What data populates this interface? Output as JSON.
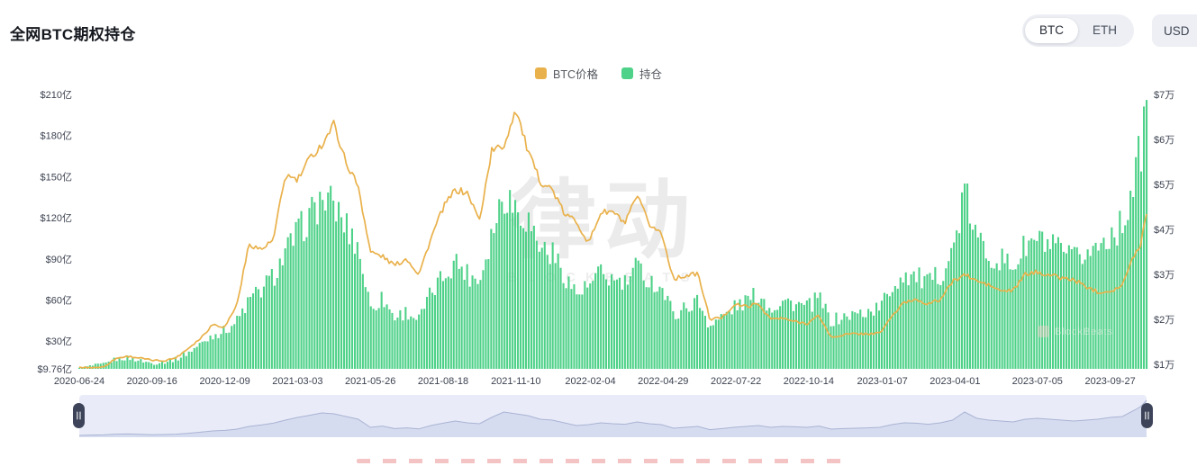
{
  "title": "全网BTC期权持仓",
  "controls": {
    "asset_toggle": {
      "options": [
        "BTC",
        "ETH"
      ],
      "selected": "BTC"
    },
    "currency_select": {
      "value": "USD"
    }
  },
  "legend": [
    {
      "label": "BTC价格",
      "color": "#e9b14b"
    },
    {
      "label": "持仓",
      "color": "#4ed188"
    }
  ],
  "watermark": {
    "logo_text": "律动",
    "sub_text": "BLOCKBEATS",
    "corner_text": "BlockBeats"
  },
  "chart_data": {
    "type": "combo",
    "x": [
      "2020-06-24",
      "2020-07-08",
      "2020-07-22",
      "2020-08-05",
      "2020-08-19",
      "2020-09-02",
      "2020-09-16",
      "2020-09-30",
      "2020-10-14",
      "2020-10-28",
      "2020-11-11",
      "2020-11-25",
      "2020-12-09",
      "2020-12-23",
      "2021-01-06",
      "2021-01-20",
      "2021-02-03",
      "2021-02-17",
      "2021-03-03",
      "2021-03-17",
      "2021-03-31",
      "2021-04-14",
      "2021-04-28",
      "2021-05-12",
      "2021-05-26",
      "2021-06-09",
      "2021-06-23",
      "2021-07-07",
      "2021-07-21",
      "2021-08-04",
      "2021-08-18",
      "2021-09-01",
      "2021-09-15",
      "2021-09-29",
      "2021-10-13",
      "2021-10-27",
      "2021-11-10",
      "2021-11-24",
      "2021-12-08",
      "2021-12-22",
      "2022-01-05",
      "2022-01-19",
      "2022-02-02",
      "2022-02-16",
      "2022-03-02",
      "2022-03-16",
      "2022-03-30",
      "2022-04-13",
      "2022-04-27",
      "2022-05-11",
      "2022-05-25",
      "2022-06-08",
      "2022-06-22",
      "2022-07-06",
      "2022-07-20",
      "2022-08-03",
      "2022-08-17",
      "2022-08-31",
      "2022-09-14",
      "2022-09-28",
      "2022-10-12",
      "2022-10-26",
      "2022-11-09",
      "2022-11-23",
      "2022-12-07",
      "2022-12-21",
      "2023-01-04",
      "2023-01-18",
      "2023-02-01",
      "2023-02-15",
      "2023-03-01",
      "2023-03-15",
      "2023-03-29",
      "2023-04-12",
      "2023-04-26",
      "2023-05-10",
      "2023-05-24",
      "2023-06-07",
      "2023-06-21",
      "2023-07-05",
      "2023-07-19",
      "2023-08-02",
      "2023-08-16",
      "2023-08-30",
      "2023-09-13",
      "2023-09-27",
      "2023-10-11",
      "2023-10-25",
      "2023-11-01",
      "2023-11-08"
    ],
    "series": [
      {
        "name": "持仓",
        "type": "bar",
        "axis": "left",
        "unit": "亿美元",
        "color": "#4ed188",
        "values": [
          10,
          12,
          13,
          17,
          18,
          16,
          14,
          15,
          17,
          22,
          28,
          35,
          38,
          45,
          60,
          68,
          78,
          95,
          110,
          122,
          135,
          130,
          115,
          100,
          55,
          62,
          48,
          52,
          46,
          65,
          78,
          90,
          80,
          75,
          110,
          140,
          130,
          120,
          100,
          95,
          80,
          65,
          70,
          80,
          75,
          72,
          85,
          75,
          70,
          50,
          55,
          60,
          42,
          48,
          55,
          60,
          65,
          55,
          60,
          58,
          55,
          62,
          45,
          48,
          50,
          52,
          55,
          70,
          80,
          78,
          72,
          80,
          95,
          140,
          105,
          95,
          90,
          85,
          100,
          105,
          100,
          95,
          90,
          95,
          100,
          110,
          115,
          150,
          170,
          205
        ]
      },
      {
        "name": "BTC价格",
        "type": "line",
        "axis": "right",
        "unit": "万美元",
        "color": "#e9b14b",
        "values": [
          0.93,
          0.93,
          0.94,
          1.13,
          1.18,
          1.14,
          1.09,
          1.08,
          1.15,
          1.36,
          1.58,
          1.89,
          1.83,
          2.33,
          3.68,
          3.55,
          3.76,
          5.21,
          5.09,
          5.58,
          5.88,
          6.35,
          5.48,
          4.97,
          3.5,
          3.4,
          3.2,
          3.35,
          3.0,
          3.8,
          4.48,
          4.88,
          4.81,
          4.2,
          5.75,
          5.85,
          6.69,
          5.72,
          5.07,
          4.89,
          4.34,
          4.18,
          3.69,
          4.38,
          4.39,
          4.13,
          4.74,
          4.11,
          3.92,
          2.9,
          2.97,
          3.02,
          2.0,
          2.04,
          2.33,
          2.29,
          2.34,
          2.01,
          2.02,
          1.95,
          1.91,
          2.08,
          1.59,
          1.66,
          1.68,
          1.68,
          1.69,
          2.07,
          2.37,
          2.45,
          2.34,
          2.44,
          2.84,
          3.0,
          2.85,
          2.76,
          2.63,
          2.64,
          3.0,
          3.05,
          2.99,
          2.92,
          2.88,
          2.73,
          2.61,
          2.63,
          2.75,
          3.45,
          3.65,
          4.38
        ]
      }
    ],
    "left_axis": {
      "tick_labels": [
        "$210亿",
        "$180亿",
        "$150亿",
        "$120亿",
        "$90亿",
        "$60亿",
        "$30亿",
        "$9.76亿"
      ],
      "tick_values": [
        210,
        180,
        150,
        120,
        90,
        60,
        30,
        9.76
      ],
      "min": 9.76,
      "max": 210
    },
    "right_axis": {
      "tick_labels": [
        "$7万",
        "$6万",
        "$5万",
        "$4万",
        "$3万",
        "$2万",
        "$1万"
      ],
      "tick_values": [
        7,
        6,
        5,
        4,
        3,
        2,
        1
      ],
      "min": 0.9,
      "max": 7
    },
    "x_ticks": [
      "2020-06-24",
      "2020-09-16",
      "2020-12-09",
      "2021-03-03",
      "2021-05-26",
      "2021-08-18",
      "2021-11-10",
      "2022-02-04",
      "2022-04-29",
      "2022-07-22",
      "2022-10-14",
      "2023-01-07",
      "2023-04-01",
      "2023-07-05",
      "2023-09-27"
    ],
    "grid": false,
    "legend_position": "top-center"
  },
  "brush": {
    "series": "持仓",
    "handles": [
      "left",
      "right"
    ]
  }
}
